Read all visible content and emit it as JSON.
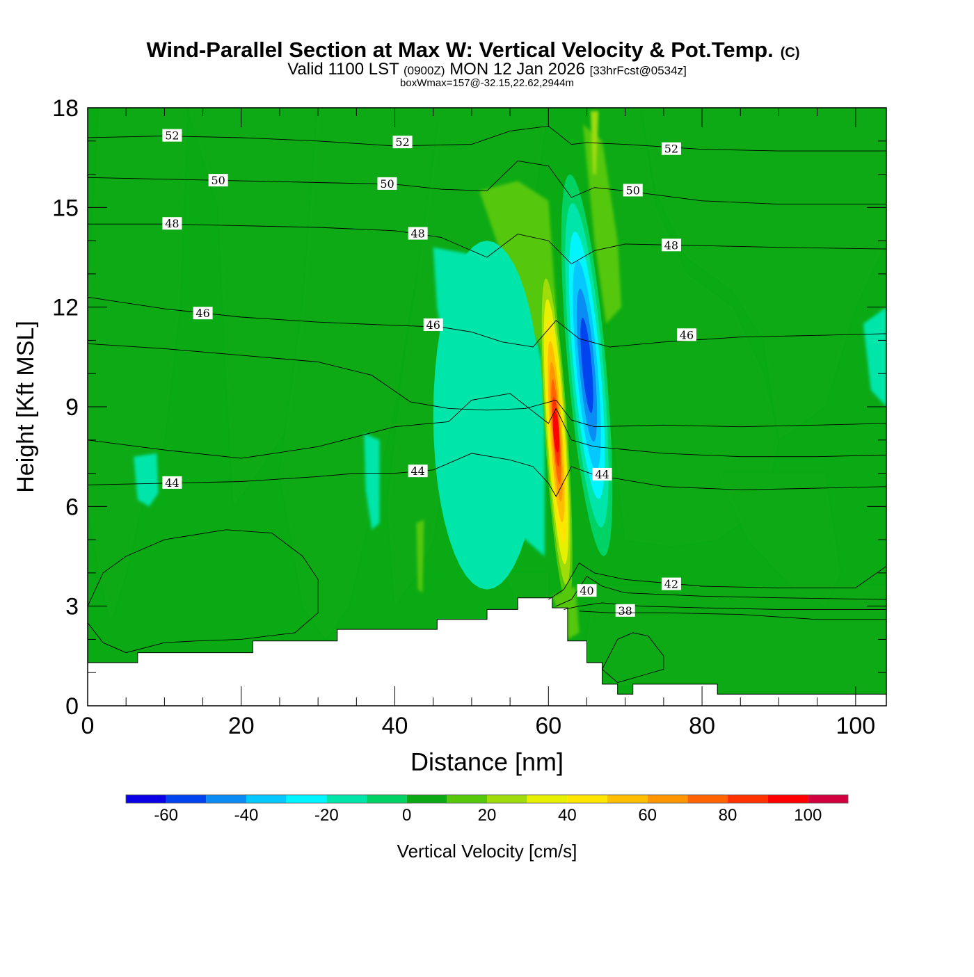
{
  "chart_data": {
    "type": "contour",
    "title": "Wind-Parallel Section at Max W: Vertical Velocity & Pot.Temp.",
    "copyright": "(C)",
    "subtitle": {
      "valid_prefix": "Valid 1100 LST",
      "utc": "(0900Z)",
      "date": "MON 12 Jan 2026",
      "forecast": "[33hrFcst@0534z]"
    },
    "box_note": "boxWmax=157@-32.15,22.62,2944m",
    "xlabel": "Distance [nm]",
    "ylabel": "Height [Kft MSL]",
    "xlim": [
      0,
      104
    ],
    "ylim": [
      0,
      18
    ],
    "x_ticks": [
      "0",
      "20",
      "40",
      "60",
      "80",
      "100"
    ],
    "y_ticks": [
      "0",
      "3",
      "6",
      "9",
      "12",
      "15",
      "18"
    ],
    "colorbar": {
      "label": "Vertical Velocity [cm/s]",
      "levels": [
        -70,
        -60,
        -50,
        -40,
        -30,
        -20,
        -10,
        0,
        10,
        20,
        30,
        40,
        50,
        60,
        70,
        80,
        90,
        100,
        110
      ],
      "tick_labels": [
        "-60",
        "-40",
        "-20",
        "0",
        "20",
        "40",
        "60",
        "80",
        "100"
      ],
      "colors": [
        "#0a00e6",
        "#0044f0",
        "#0a8cf5",
        "#05c8ff",
        "#00f5ff",
        "#00e6aa",
        "#00d264",
        "#0aaa14",
        "#55c80a",
        "#a0dc0a",
        "#e6f000",
        "#ffe600",
        "#ffbe00",
        "#ff9600",
        "#ff6400",
        "#ff3200",
        "#ff0000",
        "#d2003c"
      ]
    },
    "theta_contours": [
      {
        "label": "52",
        "x": [
          0,
          10,
          20,
          30,
          40,
          50,
          55,
          60,
          63,
          65,
          70,
          80,
          90,
          104
        ],
        "y": [
          17.1,
          17.15,
          17.1,
          17.0,
          16.85,
          16.9,
          17.3,
          17.45,
          16.9,
          16.95,
          16.9,
          16.75,
          16.7,
          16.7
        ],
        "label_at": [
          [
            11,
            17.15
          ],
          [
            41,
            16.95
          ],
          [
            76,
            16.75
          ]
        ]
      },
      {
        "label": "50",
        "x": [
          0,
          10,
          20,
          30,
          40,
          46,
          52,
          56,
          60,
          63,
          66,
          70,
          80,
          90,
          104
        ],
        "y": [
          15.9,
          15.85,
          15.8,
          15.75,
          15.7,
          15.55,
          15.5,
          16.4,
          16.25,
          15.3,
          15.6,
          15.5,
          15.2,
          15.1,
          15.1
        ],
        "label_at": [
          [
            17,
            15.8
          ],
          [
            39,
            15.7
          ],
          [
            71,
            15.5
          ]
        ]
      },
      {
        "label": "48",
        "x": [
          0,
          10,
          20,
          30,
          40,
          46,
          52,
          56,
          60,
          63,
          66,
          70,
          80,
          90,
          104
        ],
        "y": [
          14.5,
          14.5,
          14.45,
          14.4,
          14.3,
          14.1,
          13.5,
          14.2,
          14.0,
          13.3,
          13.7,
          13.9,
          13.85,
          13.8,
          13.75
        ],
        "label_at": [
          [
            11,
            14.5
          ],
          [
            43,
            14.2
          ],
          [
            76,
            13.85
          ]
        ]
      },
      {
        "label": "46",
        "x": [
          0,
          10,
          20,
          30,
          40,
          46,
          50,
          54,
          58,
          61,
          64,
          68,
          75,
          85,
          95,
          104
        ],
        "y": [
          12.3,
          11.95,
          11.7,
          11.55,
          11.45,
          11.4,
          11.25,
          10.95,
          10.8,
          11.6,
          11.05,
          10.8,
          10.95,
          11.1,
          11.15,
          11.2
        ],
        "label_at": [
          [
            15,
            11.8
          ],
          [
            45,
            11.45
          ],
          [
            78,
            11.15
          ]
        ]
      },
      {
        "label": "",
        "x": [
          0,
          10,
          20,
          30,
          37,
          42,
          47,
          52,
          57,
          61,
          63,
          66,
          75,
          85,
          95,
          104
        ],
        "y": [
          10.9,
          10.75,
          10.55,
          10.35,
          9.95,
          9.15,
          8.95,
          8.9,
          8.95,
          9.2,
          8.6,
          8.4,
          8.45,
          8.4,
          8.45,
          8.5
        ],
        "label_at": []
      },
      {
        "label": "",
        "x": [
          0,
          10,
          20,
          30,
          40,
          47,
          50,
          55,
          60,
          61,
          63,
          66,
          75,
          85,
          95,
          104
        ],
        "y": [
          8.0,
          7.7,
          7.45,
          7.8,
          8.4,
          8.55,
          9.2,
          9.4,
          8.5,
          8.95,
          8.0,
          7.8,
          7.6,
          7.5,
          7.5,
          7.55
        ],
        "label_at": []
      },
      {
        "label": "44",
        "x": [
          0,
          10,
          20,
          30,
          35,
          40,
          45,
          50,
          55,
          58,
          60,
          61,
          63,
          66,
          75,
          85,
          95,
          104
        ],
        "y": [
          6.65,
          6.7,
          6.75,
          6.9,
          7.0,
          7.0,
          7.1,
          7.6,
          7.4,
          7.2,
          6.7,
          6.3,
          7.2,
          6.95,
          6.6,
          6.5,
          6.55,
          6.6
        ],
        "label_at": [
          [
            11,
            6.7
          ],
          [
            43,
            7.05
          ],
          [
            67,
            6.95
          ]
        ]
      },
      {
        "label": "42",
        "x": [
          60,
          62,
          64,
          66,
          70,
          80,
          90,
          100,
          104
        ],
        "y": [
          3.2,
          3.5,
          4.3,
          4.0,
          3.8,
          3.6,
          3.55,
          3.55,
          4.2
        ],
        "label_at": [
          [
            76,
            3.65
          ]
        ]
      },
      {
        "label": "40",
        "x": [
          61,
          63,
          65,
          67,
          70,
          80,
          90,
          104
        ],
        "y": [
          3.0,
          3.2,
          3.9,
          3.6,
          3.4,
          3.3,
          3.25,
          3.2
        ],
        "label_at": [
          [
            65,
            3.45
          ]
        ]
      },
      {
        "label": "38",
        "x": [
          62,
          64,
          67,
          72,
          80,
          90,
          104
        ],
        "y": [
          2.9,
          3.0,
          3.1,
          3.0,
          2.95,
          2.9,
          2.9
        ],
        "label_at": [
          [
            70,
            2.85
          ]
        ]
      },
      {
        "label": "",
        "x": [
          64,
          68,
          75,
          85,
          95,
          104
        ],
        "y": [
          2.85,
          2.8,
          2.8,
          2.75,
          2.6,
          2.6
        ],
        "label_at": []
      },
      {
        "label": "",
        "x": [
          0,
          2,
          5,
          10,
          18,
          24,
          28,
          30,
          30,
          27,
          20,
          14,
          10,
          5,
          2,
          0
        ],
        "y": [
          3.0,
          4.0,
          4.5,
          5.0,
          5.3,
          5.2,
          4.5,
          3.8,
          2.8,
          2.2,
          2.0,
          1.95,
          1.9,
          1.6,
          1.9,
          2.5
        ],
        "label_at": []
      },
      {
        "label": "",
        "x": [
          67,
          69,
          71,
          73,
          75,
          75,
          72,
          69,
          67
        ],
        "y": [
          1.1,
          2.0,
          2.2,
          2.1,
          1.5,
          1.1,
          0.9,
          0.7,
          1.1
        ],
        "label_at": []
      }
    ],
    "terrain": {
      "x": [
        0,
        6.5,
        6.5,
        21.5,
        21.5,
        32.5,
        32.5,
        45.5,
        45.5,
        52,
        52,
        56,
        56,
        60.5,
        60.5,
        62.5,
        62.5,
        65,
        65,
        67,
        67,
        69,
        69,
        71,
        71,
        82,
        82,
        104
      ],
      "y": [
        1.3,
        1.3,
        1.6,
        1.6,
        1.95,
        1.95,
        2.3,
        2.3,
        2.6,
        2.6,
        2.9,
        2.9,
        3.25,
        3.25,
        2.95,
        2.95,
        1.95,
        1.95,
        1.3,
        1.3,
        0.65,
        0.65,
        0.35,
        0.35,
        0.65,
        0.65,
        0.35,
        0.35
      ]
    },
    "w_features": [
      {
        "kind": "updraft",
        "max_cm_s": 157,
        "x_range": [
          59.5,
          62.5
        ],
        "z_range": [
          3.0,
          13.5
        ]
      },
      {
        "kind": "downdraft",
        "min_cm_s": -60,
        "x_range": [
          62.5,
          67.5
        ],
        "z_range": [
          4.5,
          16.0
        ]
      },
      {
        "kind": "weak_downdraft_band",
        "min_cm_s": -20,
        "x_range": [
          45,
          59
        ],
        "z_range": [
          3.5,
          14.0
        ]
      }
    ]
  }
}
